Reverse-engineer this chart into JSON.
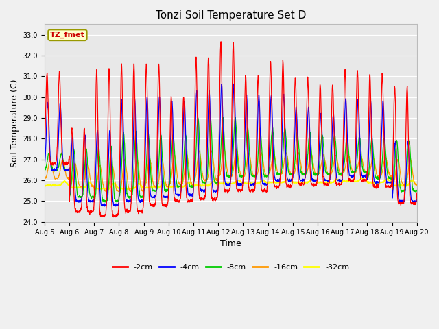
{
  "title": "Tonzi Soil Temperature Set D",
  "xlabel": "Time",
  "ylabel": "Soil Temperature (C)",
  "ylim": [
    24.0,
    33.5
  ],
  "yticks": [
    24.0,
    25.0,
    26.0,
    27.0,
    28.0,
    29.0,
    30.0,
    31.0,
    32.0,
    33.0
  ],
  "xtick_labels": [
    "Aug 5",
    "Aug 6",
    "Aug 7",
    "Aug 8",
    "Aug 9",
    "Aug 10",
    "Aug 11",
    "Aug 12",
    "Aug 13",
    "Aug 14",
    "Aug 15",
    "Aug 16",
    "Aug 17",
    "Aug 18",
    "Aug 19",
    "Aug 20"
  ],
  "legend_label": "TZ_fmet",
  "series_colors": {
    "-2cm": "#ff0000",
    "-4cm": "#0000ff",
    "-8cm": "#00cc00",
    "-16cm": "#ff9900",
    "-32cm": "#ffff00"
  },
  "bg_color": "#e8e8e8",
  "fig_bg_color": "#f0f0f0",
  "title_fontsize": 11,
  "axis_fontsize": 9,
  "tick_fontsize": 7
}
